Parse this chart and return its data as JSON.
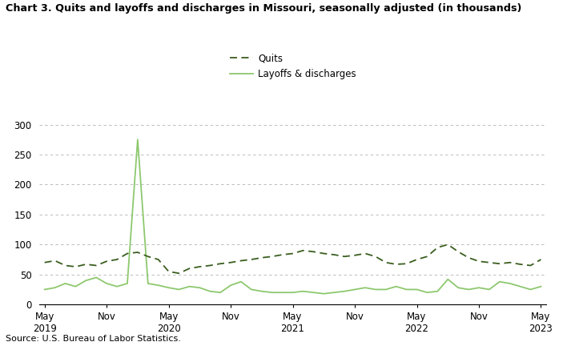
{
  "title": "Chart 3. Quits and layoffs and discharges in Missouri, seasonally adjusted (in thousands)",
  "source": "Source: U.S. Bureau of Labor Statistics.",
  "quits_label": "Quits",
  "layoffs_label": "Layoffs & discharges",
  "quits_color": "#3a5e1f",
  "layoffs_color": "#8dc86e",
  "background_color": "#ffffff",
  "ylim": [
    0,
    300
  ],
  "yticks": [
    0,
    50,
    100,
    150,
    200,
    250,
    300
  ],
  "xtick_positions": [
    0,
    6,
    12,
    18,
    24,
    30,
    36,
    42,
    48
  ],
  "xtick_labels": [
    "May\n2019",
    "Nov",
    "May\n2020",
    "Nov",
    "May\n2021",
    "Nov",
    "May\n2022",
    "Nov",
    "May\n2023"
  ],
  "quits": [
    70,
    73,
    65,
    63,
    67,
    65,
    72,
    75,
    85,
    87,
    80,
    75,
    55,
    52,
    60,
    63,
    65,
    68,
    70,
    73,
    75,
    78,
    80,
    83,
    85,
    90,
    88,
    85,
    83,
    80,
    82,
    85,
    80,
    70,
    67,
    68,
    75,
    80,
    95,
    100,
    88,
    78,
    72,
    70,
    68,
    70,
    67,
    65,
    75
  ],
  "layoffs": [
    25,
    28,
    35,
    30,
    40,
    45,
    35,
    30,
    35,
    275,
    35,
    32,
    28,
    25,
    30,
    28,
    22,
    20,
    32,
    38,
    25,
    22,
    20,
    20,
    20,
    22,
    20,
    18,
    20,
    22,
    25,
    28,
    25,
    25,
    30,
    25,
    25,
    20,
    22,
    42,
    28,
    25,
    28,
    25,
    38,
    35,
    30,
    25,
    30
  ]
}
